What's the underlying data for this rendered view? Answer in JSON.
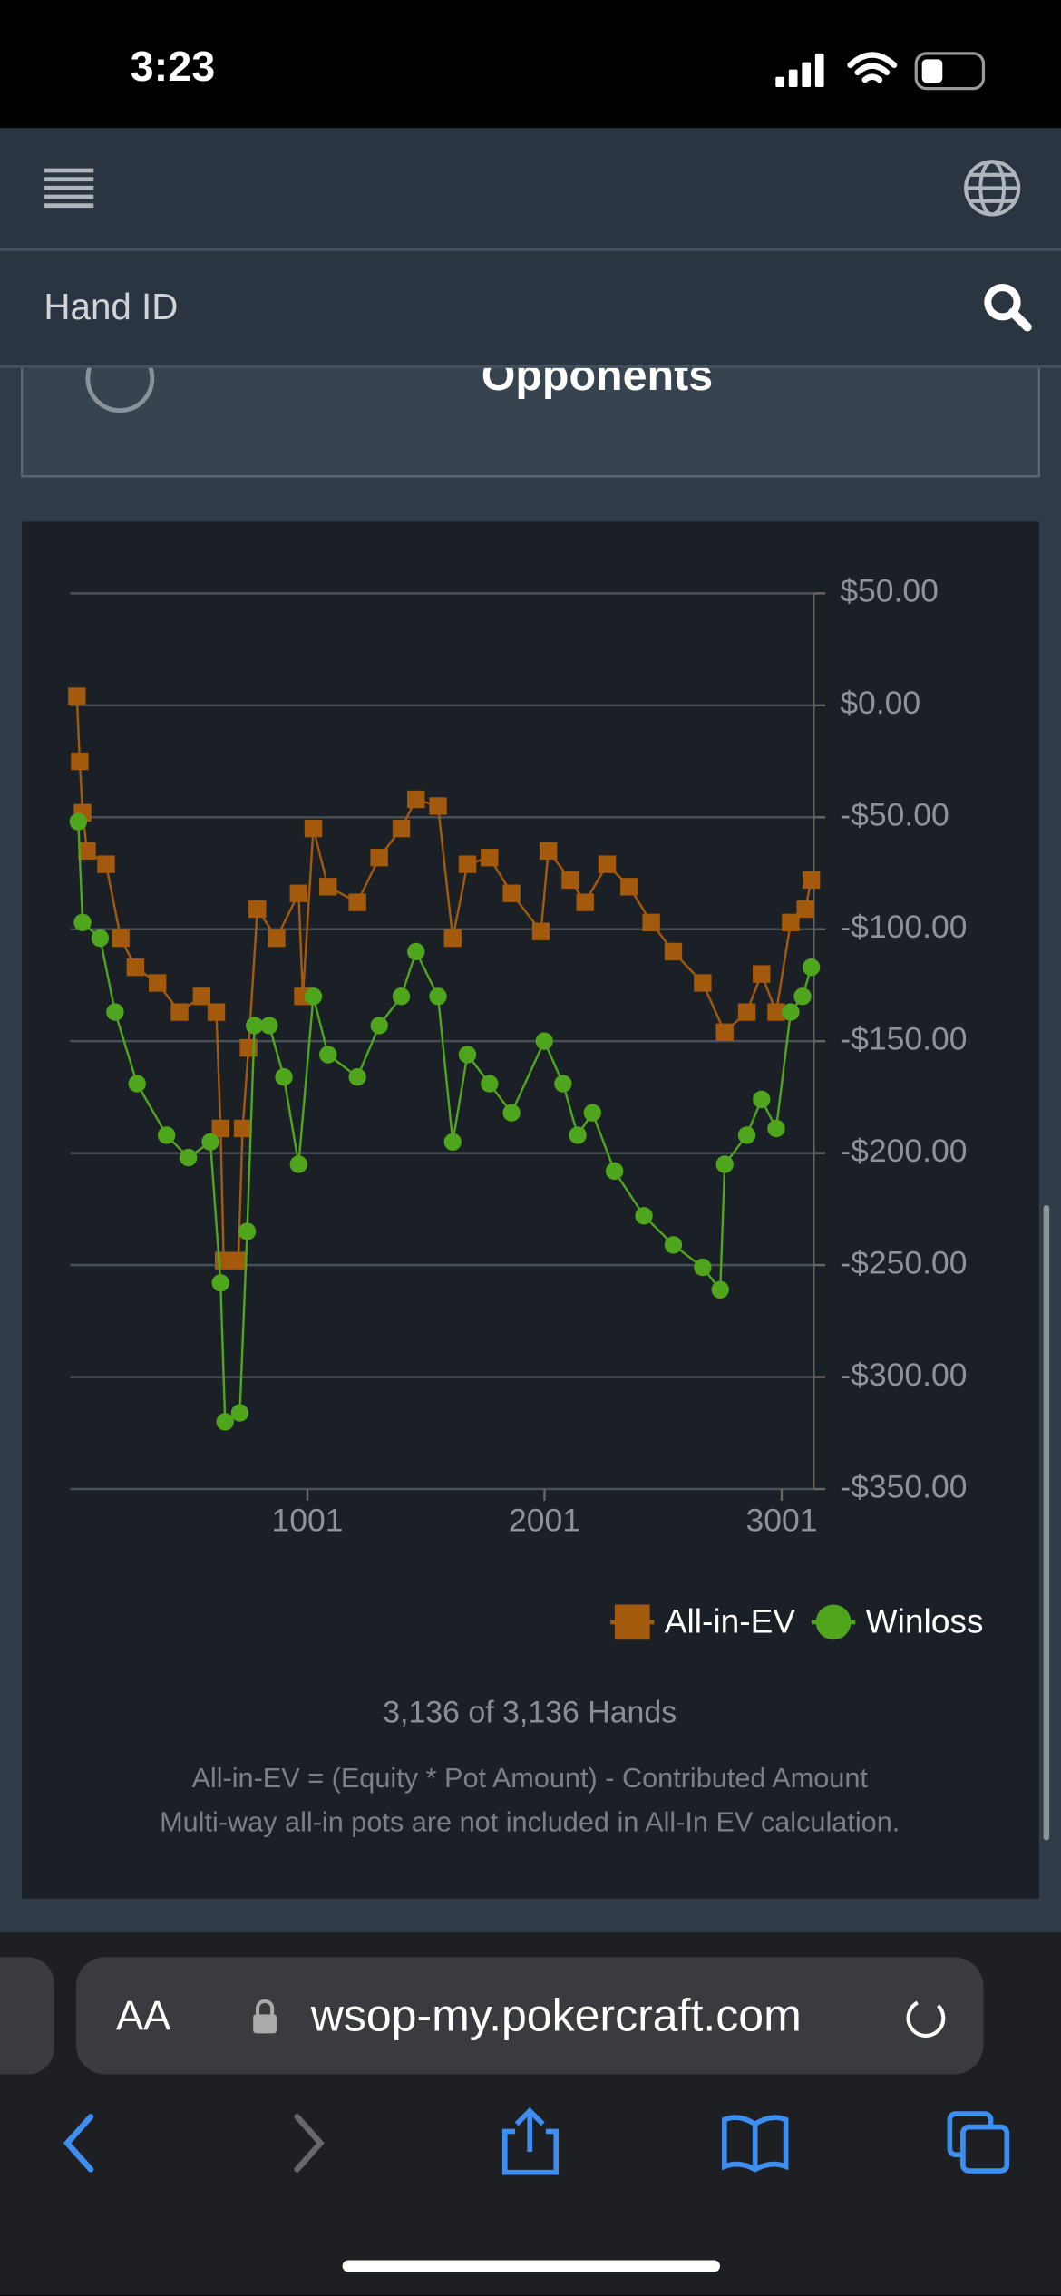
{
  "status_bar": {
    "time": "3:23"
  },
  "header": {
    "search_placeholder": "Hand ID"
  },
  "section": {
    "title": "Opponents"
  },
  "chart_data": {
    "type": "line",
    "xlim": [
      1,
      3136
    ],
    "xticks": [
      1001,
      2001,
      3001
    ],
    "ylim": [
      -350,
      50
    ],
    "yticks": [
      {
        "value": 50,
        "label": "$50.00"
      },
      {
        "value": 0,
        "label": "$0.00"
      },
      {
        "value": -50,
        "label": "-$50.00"
      },
      {
        "value": -100,
        "label": "-$100.00"
      },
      {
        "value": -150,
        "label": "-$150.00"
      },
      {
        "value": -200,
        "label": "-$200.00"
      },
      {
        "value": -250,
        "label": "-$250.00"
      },
      {
        "value": -300,
        "label": "-$300.00"
      },
      {
        "value": -350,
        "label": "-$350.00"
      }
    ],
    "grid": true,
    "legend": "bottom-right",
    "series": [
      {
        "name": "All-in-EV",
        "color": "#a35a0c",
        "marker": "square",
        "x": [
          29,
          41,
          53,
          72,
          152,
          214,
          276,
          369,
          462,
          555,
          617,
          635,
          648,
          710,
          728,
          753,
          790,
          871,
          964,
          982,
          1026,
          1088,
          1212,
          1304,
          1397,
          1459,
          1552,
          1614,
          1676,
          1769,
          1862,
          1986,
          2017,
          2110,
          2172,
          2265,
          2358,
          2451,
          2544,
          2668,
          2761,
          2854,
          2916,
          2978,
          3039,
          3101,
          3126
        ],
        "values": [
          4,
          -25,
          -48,
          -65,
          -71,
          -104,
          -117,
          -124,
          -137,
          -130,
          -137,
          -189,
          -248,
          -248,
          -189,
          -153,
          -91,
          -104,
          -84,
          -130,
          -55,
          -81,
          -88,
          -68,
          -55,
          -42,
          -45,
          -104,
          -71,
          -68,
          -84,
          -101,
          -65,
          -78,
          -88,
          -71,
          -81,
          -97,
          -110,
          -124,
          -146,
          -137,
          -120,
          -137,
          -97,
          -91,
          -78
        ]
      },
      {
        "name": "Winloss",
        "color": "#4fa51b",
        "marker": "circle",
        "x": [
          35,
          53,
          127,
          190,
          283,
          407,
          499,
          592,
          635,
          654,
          716,
          747,
          778,
          840,
          902,
          964,
          1026,
          1088,
          1212,
          1304,
          1397,
          1459,
          1552,
          1614,
          1676,
          1769,
          1862,
          2000,
          2079,
          2141,
          2203,
          2296,
          2420,
          2544,
          2668,
          2742,
          2761,
          2854,
          2916,
          2978,
          3039,
          3089,
          3126
        ],
        "values": [
          -52,
          -97,
          -104,
          -137,
          -169,
          -192,
          -202,
          -195,
          -258,
          -320,
          -316,
          -235,
          -143,
          -143,
          -166,
          -205,
          -130,
          -156,
          -166,
          -143,
          -130,
          -110,
          -130,
          -195,
          -156,
          -169,
          -182,
          -150,
          -169,
          -192,
          -182,
          -208,
          -228,
          -241,
          -251,
          -261,
          -205,
          -192,
          -176,
          -189,
          -137,
          -130,
          -117
        ]
      }
    ]
  },
  "footer": {
    "hands": "3,136 of 3,136 Hands",
    "notes": [
      "All-in-EV = (Equity * Pot Amount) - Contributed Amount",
      "Multi-way all-in pots are not included in All-In EV calculation."
    ]
  },
  "browser": {
    "text_size": "AA",
    "url": "wsop-my.pokercraft.com"
  }
}
